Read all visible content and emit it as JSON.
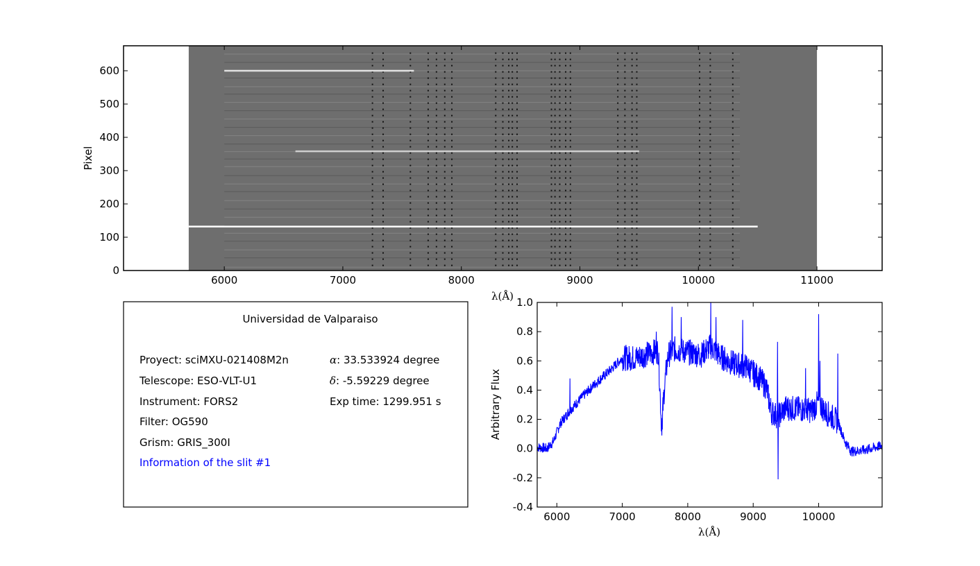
{
  "chart_data": [
    {
      "type": "heatmap",
      "ylabel": "Pixel",
      "xlabel": "λ(Å)",
      "xlim": [
        5150,
        11550
      ],
      "ylim": [
        0,
        675
      ],
      "image_extent_x": [
        5700,
        11000
      ],
      "x_ticks": [
        6000,
        7000,
        8000,
        9000,
        10000,
        11000
      ],
      "y_ticks": [
        0,
        100,
        200,
        300,
        400,
        500,
        600
      ],
      "colormap": "gray",
      "colors": {
        "background": "#6e6e6e",
        "frame": "#000000"
      },
      "description_of_features": "2D multi-slit spectrum image with horizontal slit traces and vertical dark sky lines",
      "slit_rows": [
        10,
        38,
        62,
        88,
        112,
        135,
        160,
        185,
        210,
        237,
        260,
        285,
        312,
        335,
        357,
        380,
        405,
        430,
        455,
        480,
        505,
        530,
        552,
        578,
        600,
        625,
        650
      ],
      "bright_traces": [
        {
          "y": 132,
          "x": [
            5700,
            10500
          ],
          "intensity": 1.0
        },
        {
          "y": 600,
          "x": [
            6000,
            7600
          ],
          "intensity": 0.6
        },
        {
          "y": 358,
          "x": [
            6600,
            9500
          ],
          "intensity": 0.35
        }
      ],
      "sky_lines": [
        7250,
        7340,
        7570,
        7720,
        7790,
        7860,
        7920,
        8290,
        8350,
        8400,
        8430,
        8470,
        8760,
        8790,
        8830,
        8880,
        8920,
        9320,
        9380,
        9440,
        9480,
        10010,
        10100,
        10290
      ]
    },
    {
      "type": "line",
      "xlabel": "λ(Å)",
      "ylabel": "Arbitrary Flux",
      "xlim": [
        5700,
        10970
      ],
      "ylim": [
        -0.4,
        1.0
      ],
      "x_ticks": [
        6000,
        7000,
        8000,
        9000,
        10000
      ],
      "y_ticks": [
        -0.4,
        -0.2,
        0.0,
        0.2,
        0.4,
        0.6,
        0.8,
        1.0
      ],
      "series": [
        {
          "color": "#0000ff",
          "x": [
            5700,
            5850,
            5950,
            6050,
            6200,
            6400,
            6600,
            6800,
            7000,
            7200,
            7400,
            7550,
            7600,
            7650,
            7700,
            7800,
            8000,
            8200,
            8350,
            8500,
            8700,
            8900,
            9100,
            9200,
            9280,
            9380,
            9500,
            9700,
            9900,
            10000,
            10100,
            10200,
            10300,
            10400,
            10500,
            10700,
            10970
          ],
          "y": [
            0.01,
            0.0,
            0.05,
            0.17,
            0.26,
            0.36,
            0.45,
            0.53,
            0.62,
            0.62,
            0.65,
            0.67,
            0.15,
            0.45,
            0.64,
            0.68,
            0.66,
            0.64,
            0.7,
            0.63,
            0.58,
            0.56,
            0.48,
            0.42,
            0.25,
            0.22,
            0.28,
            0.27,
            0.26,
            0.32,
            0.25,
            0.22,
            0.18,
            0.05,
            -0.02,
            -0.01,
            0.02
          ]
        }
      ],
      "spikes": [
        {
          "x": 6200,
          "y": 0.48
        },
        {
          "x": 7520,
          "y": 0.8
        },
        {
          "x": 7610,
          "y": 0.13
        },
        {
          "x": 7760,
          "y": 0.97
        },
        {
          "x": 7900,
          "y": 0.9
        },
        {
          "x": 8350,
          "y": 1.0
        },
        {
          "x": 8430,
          "y": 0.9
        },
        {
          "x": 8840,
          "y": 0.88
        },
        {
          "x": 9010,
          "y": 0.42
        },
        {
          "x": 9370,
          "y": 0.73
        },
        {
          "x": 9380,
          "y": -0.21
        },
        {
          "x": 9800,
          "y": 0.55
        },
        {
          "x": 10000,
          "y": 0.92
        },
        {
          "x": 10020,
          "y": 0.6
        },
        {
          "x": 10290,
          "y": 0.65
        }
      ]
    }
  ],
  "info_panel": {
    "title": "Universidad de Valparaiso",
    "left": [
      "Proyect: sciMXU-021408M2n",
      "Telescope: ESO-VLT-U1",
      "Instrument: FORS2",
      "Filter: OG590",
      "Grism: GRIS_300I"
    ],
    "right": [
      {
        "symbol": "α",
        "text": ": 33.533924 degree"
      },
      {
        "symbol": "δ",
        "text": ": -5.59229 degree"
      },
      {
        "symbol": "",
        "text": "Exp time: 1299.951 s"
      }
    ],
    "slit_info": "Information of the slit #1",
    "slit_info_color": "#0000ff"
  }
}
